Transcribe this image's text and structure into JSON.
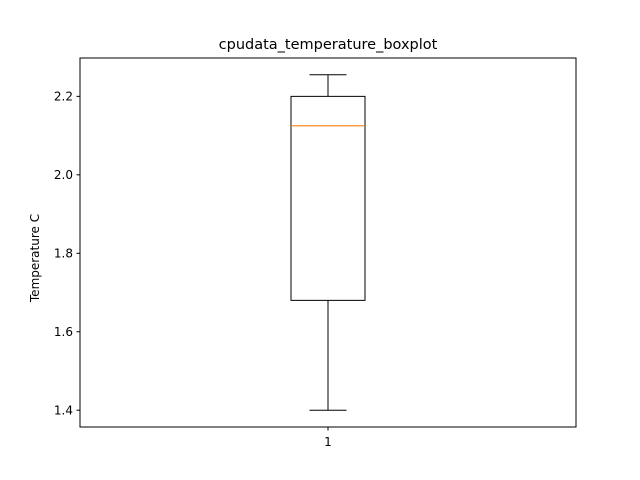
{
  "chart_data": {
    "type": "boxplot",
    "title": "cpudata_temperature_boxplot",
    "xlabel": "",
    "ylabel": "Temperature C",
    "categories": [
      "1"
    ],
    "boxes": [
      {
        "label": "1",
        "whisker_low": 1.4,
        "q1": 1.68,
        "median": 2.125,
        "q3": 2.2,
        "whisker_high": 2.255
      }
    ],
    "y_ticks": [
      {
        "value": 1.4,
        "label": "1.4"
      },
      {
        "value": 1.6,
        "label": "1.6"
      },
      {
        "value": 1.8,
        "label": "1.8"
      },
      {
        "value": 2.0,
        "label": "2.0"
      },
      {
        "value": 2.2,
        "label": "2.2"
      }
    ],
    "ylim": [
      1.3572,
      2.2978
    ],
    "grid": false,
    "colors": {
      "box": "#000000",
      "median": "#ff7f0e",
      "whisker": "#000000",
      "axes": "#000000"
    }
  }
}
